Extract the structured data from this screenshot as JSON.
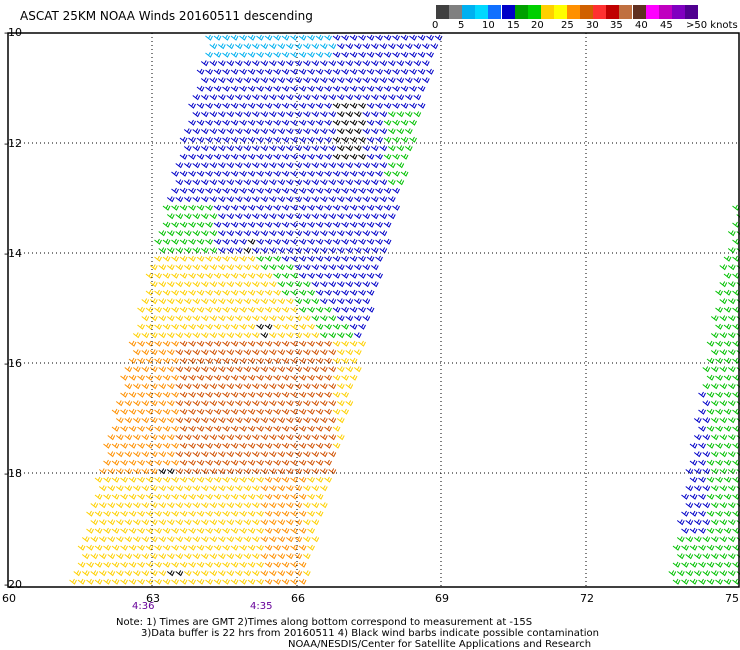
{
  "title": "ASCAT 25KM NOAA Winds 20160511 descending",
  "colorbar": {
    "colors": [
      "#404040",
      "#808080",
      "#00b0f0",
      "#00d8ff",
      "#1070ff",
      "#0000c8",
      "#00a000",
      "#00d000",
      "#ffd000",
      "#ffff00",
      "#ff9000",
      "#d06000",
      "#ff3030",
      "#c00000",
      "#c07040",
      "#603020",
      "#ff00ff",
      "#c000c0",
      "#8000c0",
      "#500090"
    ],
    "labels": [
      "0",
      "5",
      "10",
      "15",
      "20",
      "25",
      "30",
      "35",
      "40",
      "45",
      ">50 knots"
    ]
  },
  "axes": {
    "y_labels": [
      "-10",
      "-12",
      "-14",
      "-16",
      "-18",
      "-20"
    ],
    "x_labels": [
      "60",
      "63",
      "66",
      "69",
      "72",
      "75"
    ],
    "time_labels": [
      "4:36",
      "4:35"
    ]
  },
  "notes": [
    "Note: 1) Times are GMT 2)Times along bottom correspond to measurement at -15S",
    "3)Data buffer is 22 hrs from 20160511 4) Black wind barbs indicate possible contamination",
    "NOAA/NESDIS/Center for Satellite Applications and Research"
  ],
  "map": {
    "lon_range": [
      60,
      75
    ],
    "lat_range": [
      -20,
      -10
    ],
    "grid": "dotted",
    "barb_colors": {
      "10-15 kt": "#00b0f0",
      "15-20 kt": "#0000c8",
      "20-25 kt": "#00c000",
      "25-30 kt": "#ffd000",
      "30-35 kt": "#ff9000",
      "35-40 kt": "#d05000",
      "contaminated": "#000000"
    }
  }
}
